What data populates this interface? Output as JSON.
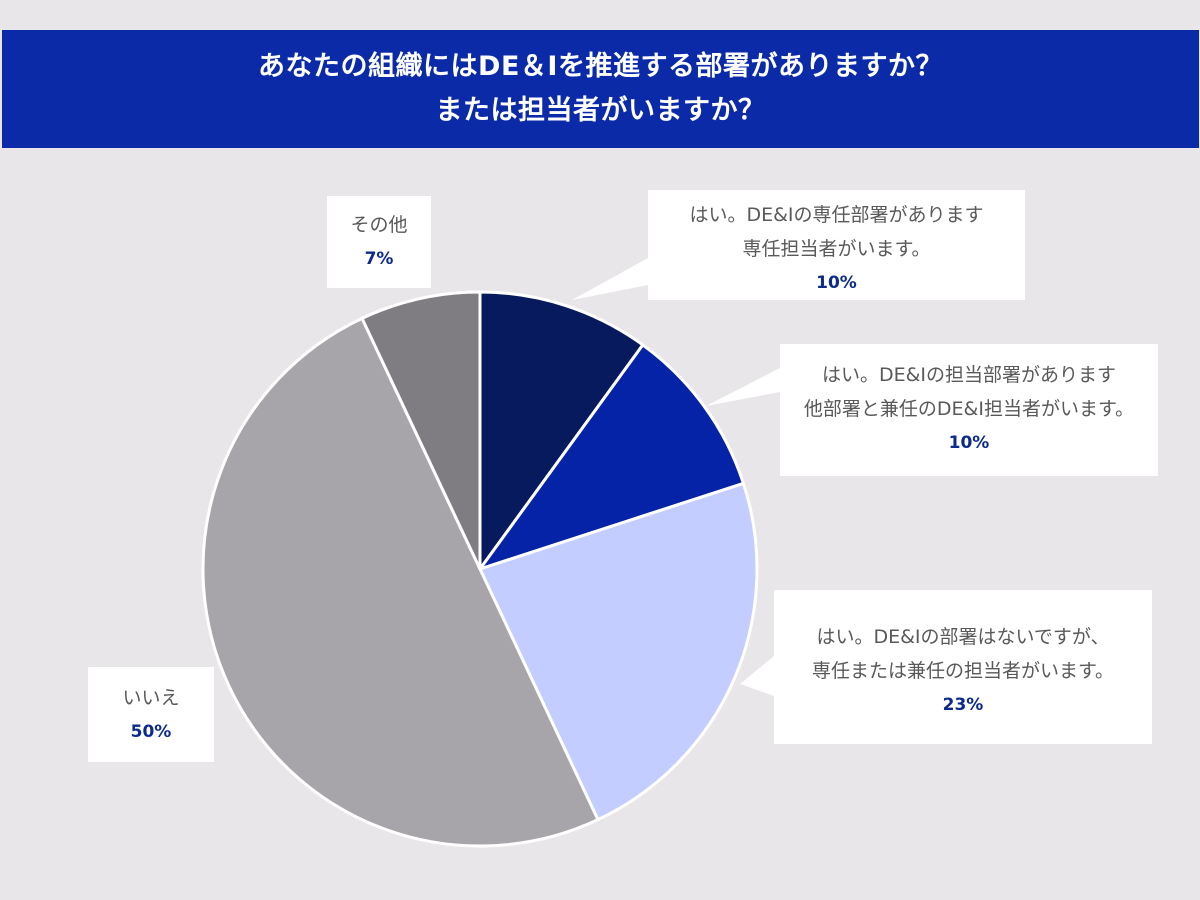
{
  "title": {
    "line1": "あなたの組織にはDE＆Iを推進する部署がありますか？",
    "line2": "または担当者がいますか？"
  },
  "chart_data": {
    "type": "pie",
    "start_angle": "12 o'clock",
    "direction": "clockwise",
    "slices": [
      {
        "label_lines": [
          "はい。DE&Iの専任部署があります",
          "専任担当者がいます。"
        ],
        "value": 10,
        "value_label": "10%",
        "color": "#071a5e"
      },
      {
        "label_lines": [
          "はい。DE&Iの担当部署があります",
          "他部署と兼任のDE&I担当者がいます。"
        ],
        "value": 10,
        "value_label": "10%",
        "color": "#0423a6"
      },
      {
        "label_lines": [
          "はい。DE&Iの部署はないですが、",
          "専任または兼任の担当者がいます。"
        ],
        "value": 23,
        "value_label": "23%",
        "color": "#c3cdff"
      },
      {
        "label_lines": [
          "いいえ"
        ],
        "value": 50,
        "value_label": "50%",
        "color": "#a7a5a9"
      },
      {
        "label_lines": [
          "その他"
        ],
        "value": 7,
        "value_label": "7%",
        "color": "#807d82"
      }
    ]
  }
}
